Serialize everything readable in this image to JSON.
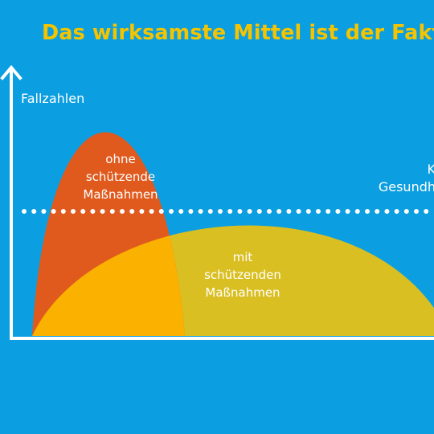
{
  "title": "Das wirksamste Mittel ist der Fakto",
  "y_axis_label": "Fallzahlen",
  "curve_high": {
    "label_lines": [
      "ohne",
      "schützende",
      "Maßnahmen"
    ]
  },
  "curve_flat": {
    "label_lines": [
      "mit",
      "schützenden",
      "Maßnahmen"
    ]
  },
  "capacity": {
    "label_lines": [
      "K",
      "Gesundh"
    ]
  },
  "colors": {
    "background": "#0b9ee0",
    "title": "#f5c400",
    "high_curve": "#e05a1e",
    "overlap": "#fbb100",
    "flat_curve": "#d9bf22",
    "axis": "#ffffff"
  }
}
